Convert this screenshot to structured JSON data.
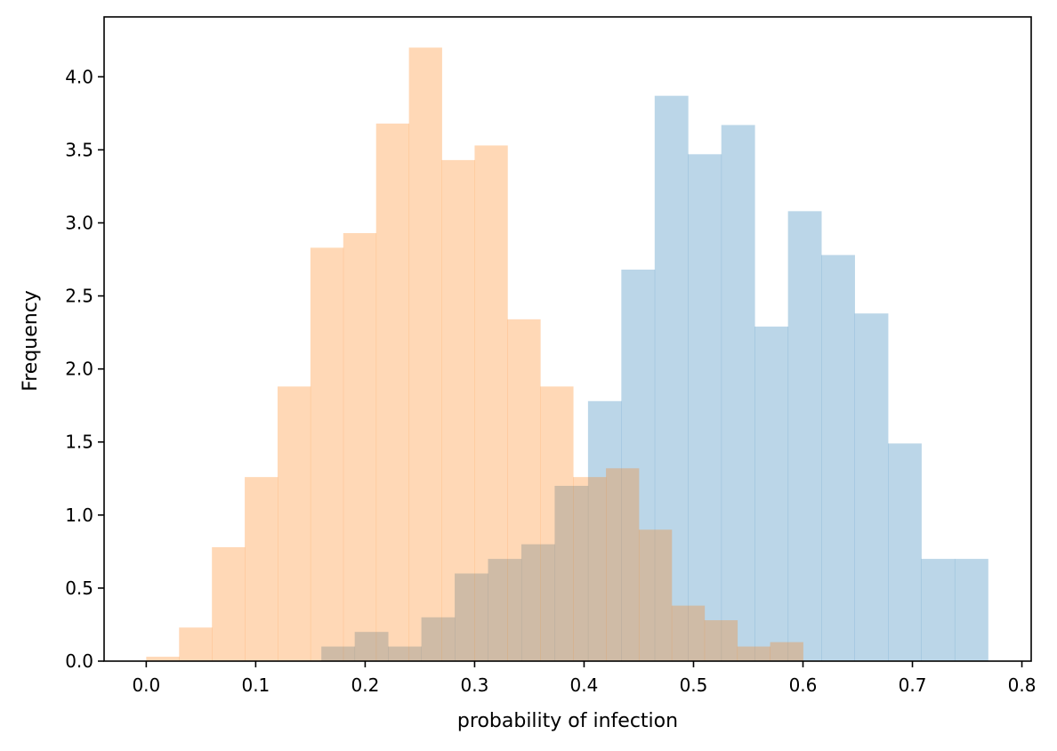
{
  "chart_data": {
    "type": "bar",
    "title": "",
    "xlabel": "probability of infection",
    "ylabel": "Frequency",
    "xlim": [
      -0.0385,
      0.8085
    ],
    "ylim": [
      0,
      4.41
    ],
    "x_ticks": [
      "0.0",
      "0.1",
      "0.2",
      "0.3",
      "0.4",
      "0.5",
      "0.6",
      "0.7",
      "0.8"
    ],
    "y_ticks": [
      "0.0",
      "0.5",
      "1.0",
      "1.5",
      "2.0",
      "2.5",
      "3.0",
      "3.5",
      "4.0"
    ],
    "grid": false,
    "legend": false,
    "series": [
      {
        "color": "#1f77b4",
        "opacity": 0.3,
        "bin_edges": [
          0.16,
          0.19045,
          0.2209,
          0.25135,
          0.2818,
          0.31225,
          0.3427,
          0.37315,
          0.4036,
          0.43405,
          0.4645,
          0.49495,
          0.5254,
          0.55585,
          0.5863,
          0.61675,
          0.6472,
          0.67765,
          0.7081,
          0.73855,
          0.769
        ],
        "values": [
          0.1,
          0.2,
          0.1,
          0.3,
          0.6,
          0.7,
          0.8,
          1.2,
          1.78,
          2.68,
          3.87,
          3.47,
          3.67,
          2.29,
          3.08,
          2.78,
          2.38,
          1.49,
          0.7,
          0.7
        ]
      },
      {
        "color": "#ff7f0e",
        "opacity": 0.3,
        "bin_edges": [
          0.0,
          0.03,
          0.06,
          0.09,
          0.12,
          0.15,
          0.18,
          0.21,
          0.24,
          0.27,
          0.3,
          0.33,
          0.36,
          0.39,
          0.42,
          0.45,
          0.48,
          0.51,
          0.54,
          0.57,
          0.6
        ],
        "values": [
          0.03,
          0.23,
          0.78,
          1.26,
          1.88,
          2.83,
          2.93,
          3.68,
          4.2,
          3.43,
          3.53,
          2.34,
          1.88,
          1.26,
          1.32,
          0.9,
          0.38,
          0.28,
          0.1,
          0.13
        ]
      }
    ]
  }
}
